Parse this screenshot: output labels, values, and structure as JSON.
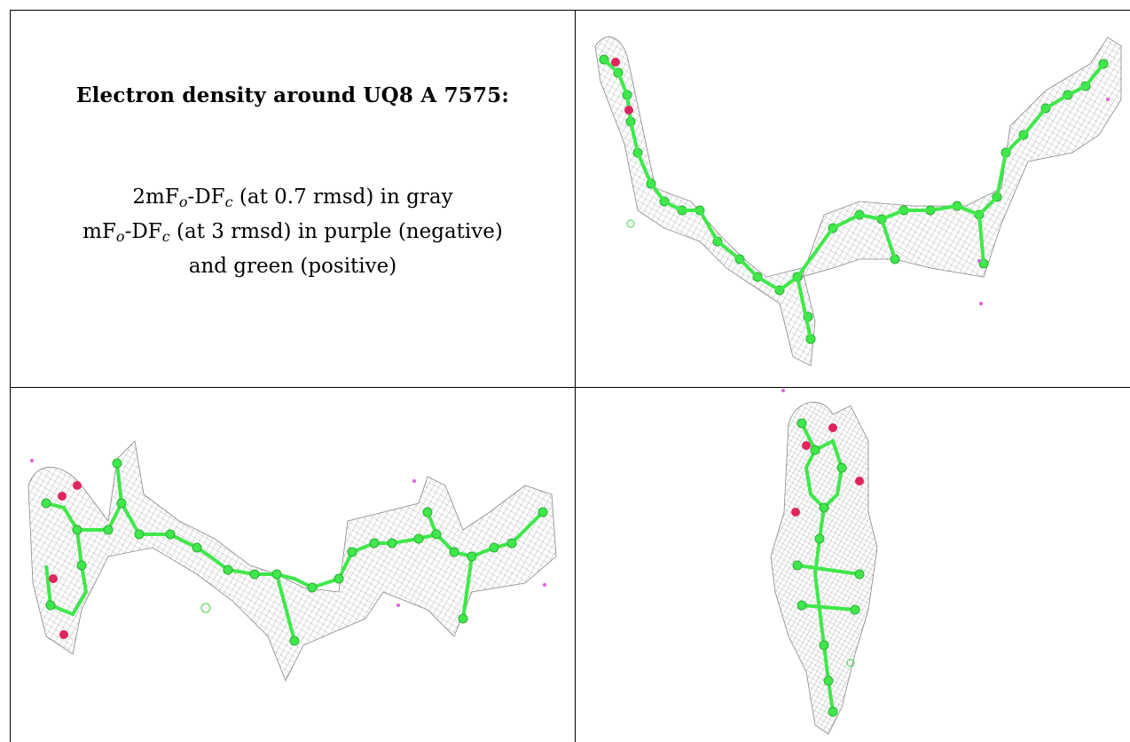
{
  "heading": "Electron density around UQ8 A 7575:",
  "legend": {
    "line1": {
      "pre": "2mF",
      "sub1": "o",
      "mid": "-DF",
      "sub2": "c",
      "post": " (at 0.7 rmsd) in gray"
    },
    "line2": {
      "pre": "mF",
      "sub1": "o",
      "mid": "-DF",
      "sub2": "c",
      "post": " (at 3 rmsd) in purple (negative)"
    },
    "line3": "and green (positive)"
  },
  "colors": {
    "mesh": "#7a7a7a",
    "carbon": "#3fe84a",
    "oxygen": "#e0245e",
    "negative_density": "#e060e0",
    "positive_density": "#40d040"
  },
  "views": [
    {
      "label": "view-top-right",
      "description_name": "uq8-density-view-1"
    },
    {
      "label": "view-bottom-left",
      "description_name": "uq8-density-view-2"
    },
    {
      "label": "view-bottom-right",
      "description_name": "uq8-density-view-3"
    }
  ]
}
